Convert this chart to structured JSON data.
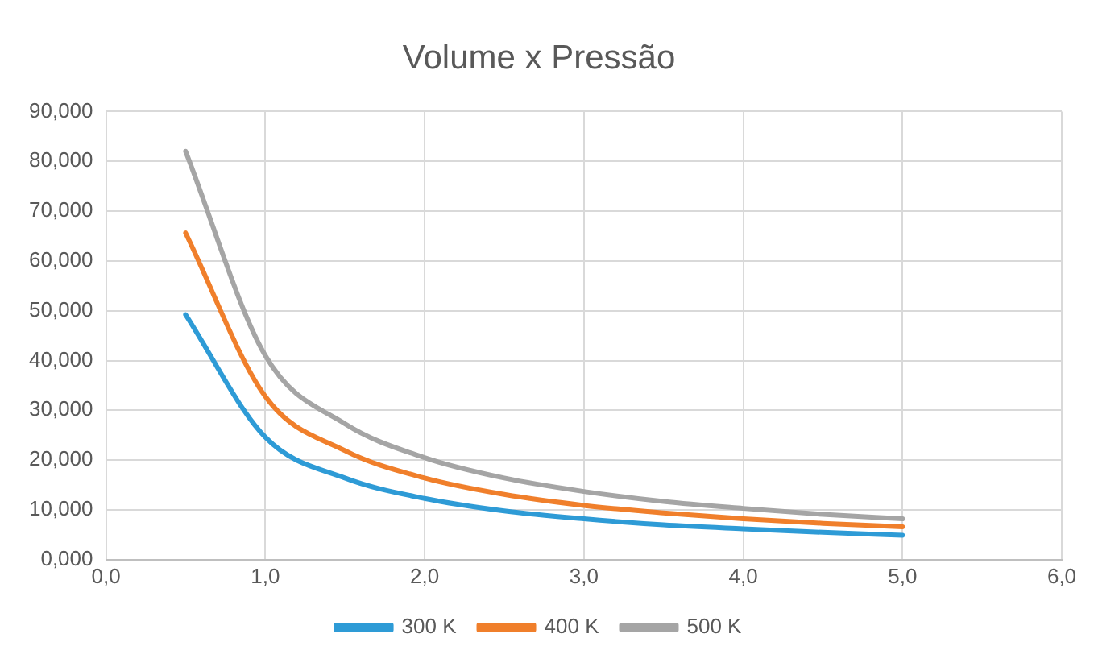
{
  "chart_data": {
    "type": "line",
    "title": "Volume x Pressão",
    "x": [
      0.5,
      1.0,
      1.5,
      2.0,
      2.5,
      3.0,
      3.5,
      4.0,
      4.5,
      5.0
    ],
    "series": [
      {
        "name": "300 K",
        "color": "#2e9bd6",
        "values": [
          49.2,
          24.6,
          16.4,
          12.3,
          9.8,
          8.2,
          7.0,
          6.2,
          5.5,
          4.9
        ]
      },
      {
        "name": "400 K",
        "color": "#f07f2b",
        "values": [
          65.6,
          32.8,
          21.9,
          16.4,
          13.1,
          10.9,
          9.4,
          8.2,
          7.3,
          6.6
        ]
      },
      {
        "name": "500 K",
        "color": "#a5a5a5",
        "values": [
          82.0,
          41.0,
          27.3,
          20.5,
          16.4,
          13.7,
          11.7,
          10.3,
          9.1,
          8.2
        ]
      }
    ],
    "xlim": [
      0,
      6
    ],
    "xticks": [
      {
        "value": 0,
        "label": "0,0"
      },
      {
        "value": 1,
        "label": "1,0"
      },
      {
        "value": 2,
        "label": "2,0"
      },
      {
        "value": 3,
        "label": "3,0"
      },
      {
        "value": 4,
        "label": "4,0"
      },
      {
        "value": 5,
        "label": "5,0"
      },
      {
        "value": 6,
        "label": "6,0"
      }
    ],
    "ylim": [
      0,
      90
    ],
    "yticks": [
      {
        "value": 0,
        "label": "0,000"
      },
      {
        "value": 10,
        "label": "10,000"
      },
      {
        "value": 20,
        "label": "20,000"
      },
      {
        "value": 30,
        "label": "30,000"
      },
      {
        "value": 40,
        "label": "40,000"
      },
      {
        "value": 50,
        "label": "50,000"
      },
      {
        "value": 60,
        "label": "60,000"
      },
      {
        "value": 70,
        "label": "70,000"
      },
      {
        "value": 80,
        "label": "80,000"
      },
      {
        "value": 90,
        "label": "90,000"
      }
    ],
    "grid": true,
    "legend": "bottom",
    "marker": "none",
    "line_style": "solid"
  }
}
